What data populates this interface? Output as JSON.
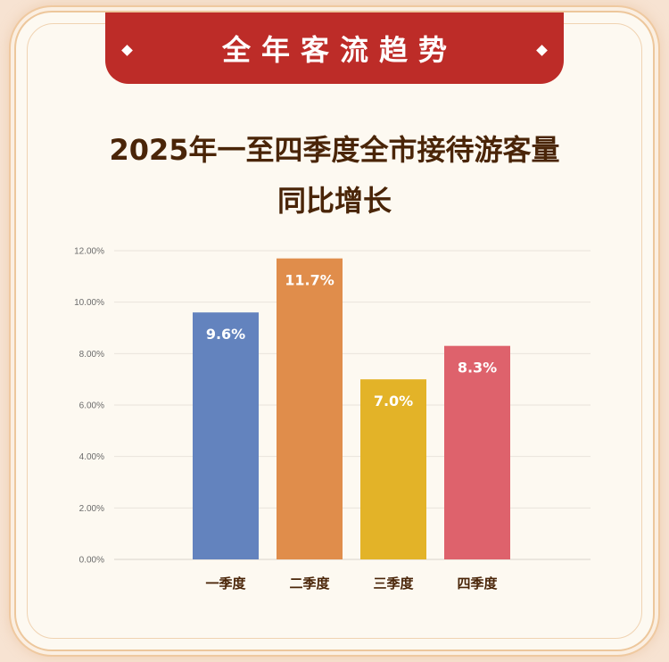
{
  "banner": {
    "title": "全年客流趋势"
  },
  "heading": {
    "line1": "2025年一至四季度全市接待游客量",
    "line2": "同比增长"
  },
  "colors": {
    "banner": "#bd2c28",
    "title": "#4a2508",
    "bars": [
      "#6383be",
      "#e08d4b",
      "#e3b328",
      "#de626c"
    ]
  },
  "chart_data": {
    "type": "bar",
    "categories": [
      "一季度",
      "二季度",
      "三季度",
      "四季度"
    ],
    "values": [
      9.6,
      11.7,
      7.0,
      8.3
    ],
    "data_labels": [
      "9.6%",
      "11.7%",
      "7.0%",
      "8.3%"
    ],
    "yticks": [
      "0.00%",
      "2.00%",
      "4.00%",
      "6.00%",
      "8.00%",
      "10.00%",
      "12.00%"
    ],
    "ylim": [
      0,
      12
    ],
    "grid": true,
    "title": "2025年一至四季度全市接待游客量同比增长",
    "xlabel": "",
    "ylabel": ""
  }
}
